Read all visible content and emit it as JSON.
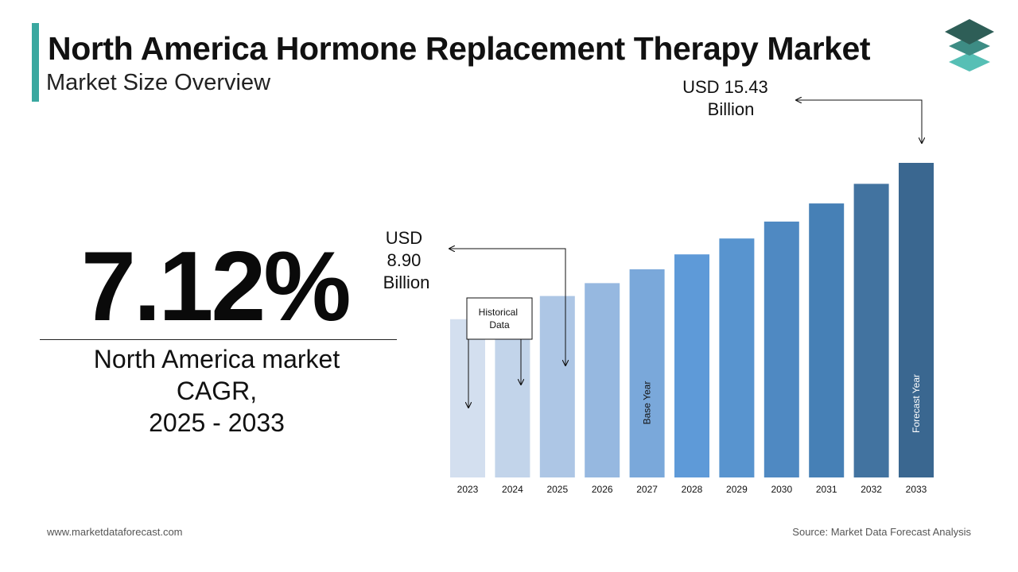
{
  "header": {
    "title": "North America Hormone Replacement Therapy Market",
    "subtitle": "Market Size Overview",
    "accent_color": "#3aa8a0"
  },
  "logo": {
    "icon": "stacked-layers-icon",
    "colors": [
      "#2e5e57",
      "#3d8c84",
      "#56bfb5"
    ]
  },
  "cagr": {
    "value": "7.12%",
    "label_lines": [
      "North America market",
      "CAGR,",
      "2025 - 2033"
    ]
  },
  "callouts": {
    "start": {
      "lines": [
        "USD",
        "8.90",
        "Billion"
      ]
    },
    "end": {
      "lines": [
        "USD 15.43",
        "Billion"
      ]
    },
    "historical_note": {
      "lines": [
        "Historical",
        "Data"
      ]
    }
  },
  "chart_data": {
    "type": "bar",
    "categories": [
      "2023",
      "2024",
      "2025",
      "2026",
      "2027",
      "2028",
      "2029",
      "2030",
      "2031",
      "2032",
      "2033"
    ],
    "values": [
      7.76,
      8.31,
      8.9,
      9.53,
      10.21,
      10.94,
      11.72,
      12.55,
      13.44,
      14.4,
      15.43
    ],
    "colors": [
      "#d3dfef",
      "#c2d4ea",
      "#adc6e5",
      "#96b8e0",
      "#7aa8da",
      "#5e9ad8",
      "#5894cf",
      "#4f89c2",
      "#4680b6",
      "#4273a0",
      "#3a6790"
    ],
    "ylim": [
      0,
      15.43
    ],
    "grid": false,
    "bar_annotations": [
      {
        "category": "2027",
        "text": "Base Year",
        "color": "#111111"
      },
      {
        "category": "2033",
        "text": "Forecast Year",
        "color": "#ffffff"
      }
    ]
  },
  "footer": {
    "website": "www.marketdataforecast.com",
    "source": "Source: Market Data Forecast Analysis"
  }
}
